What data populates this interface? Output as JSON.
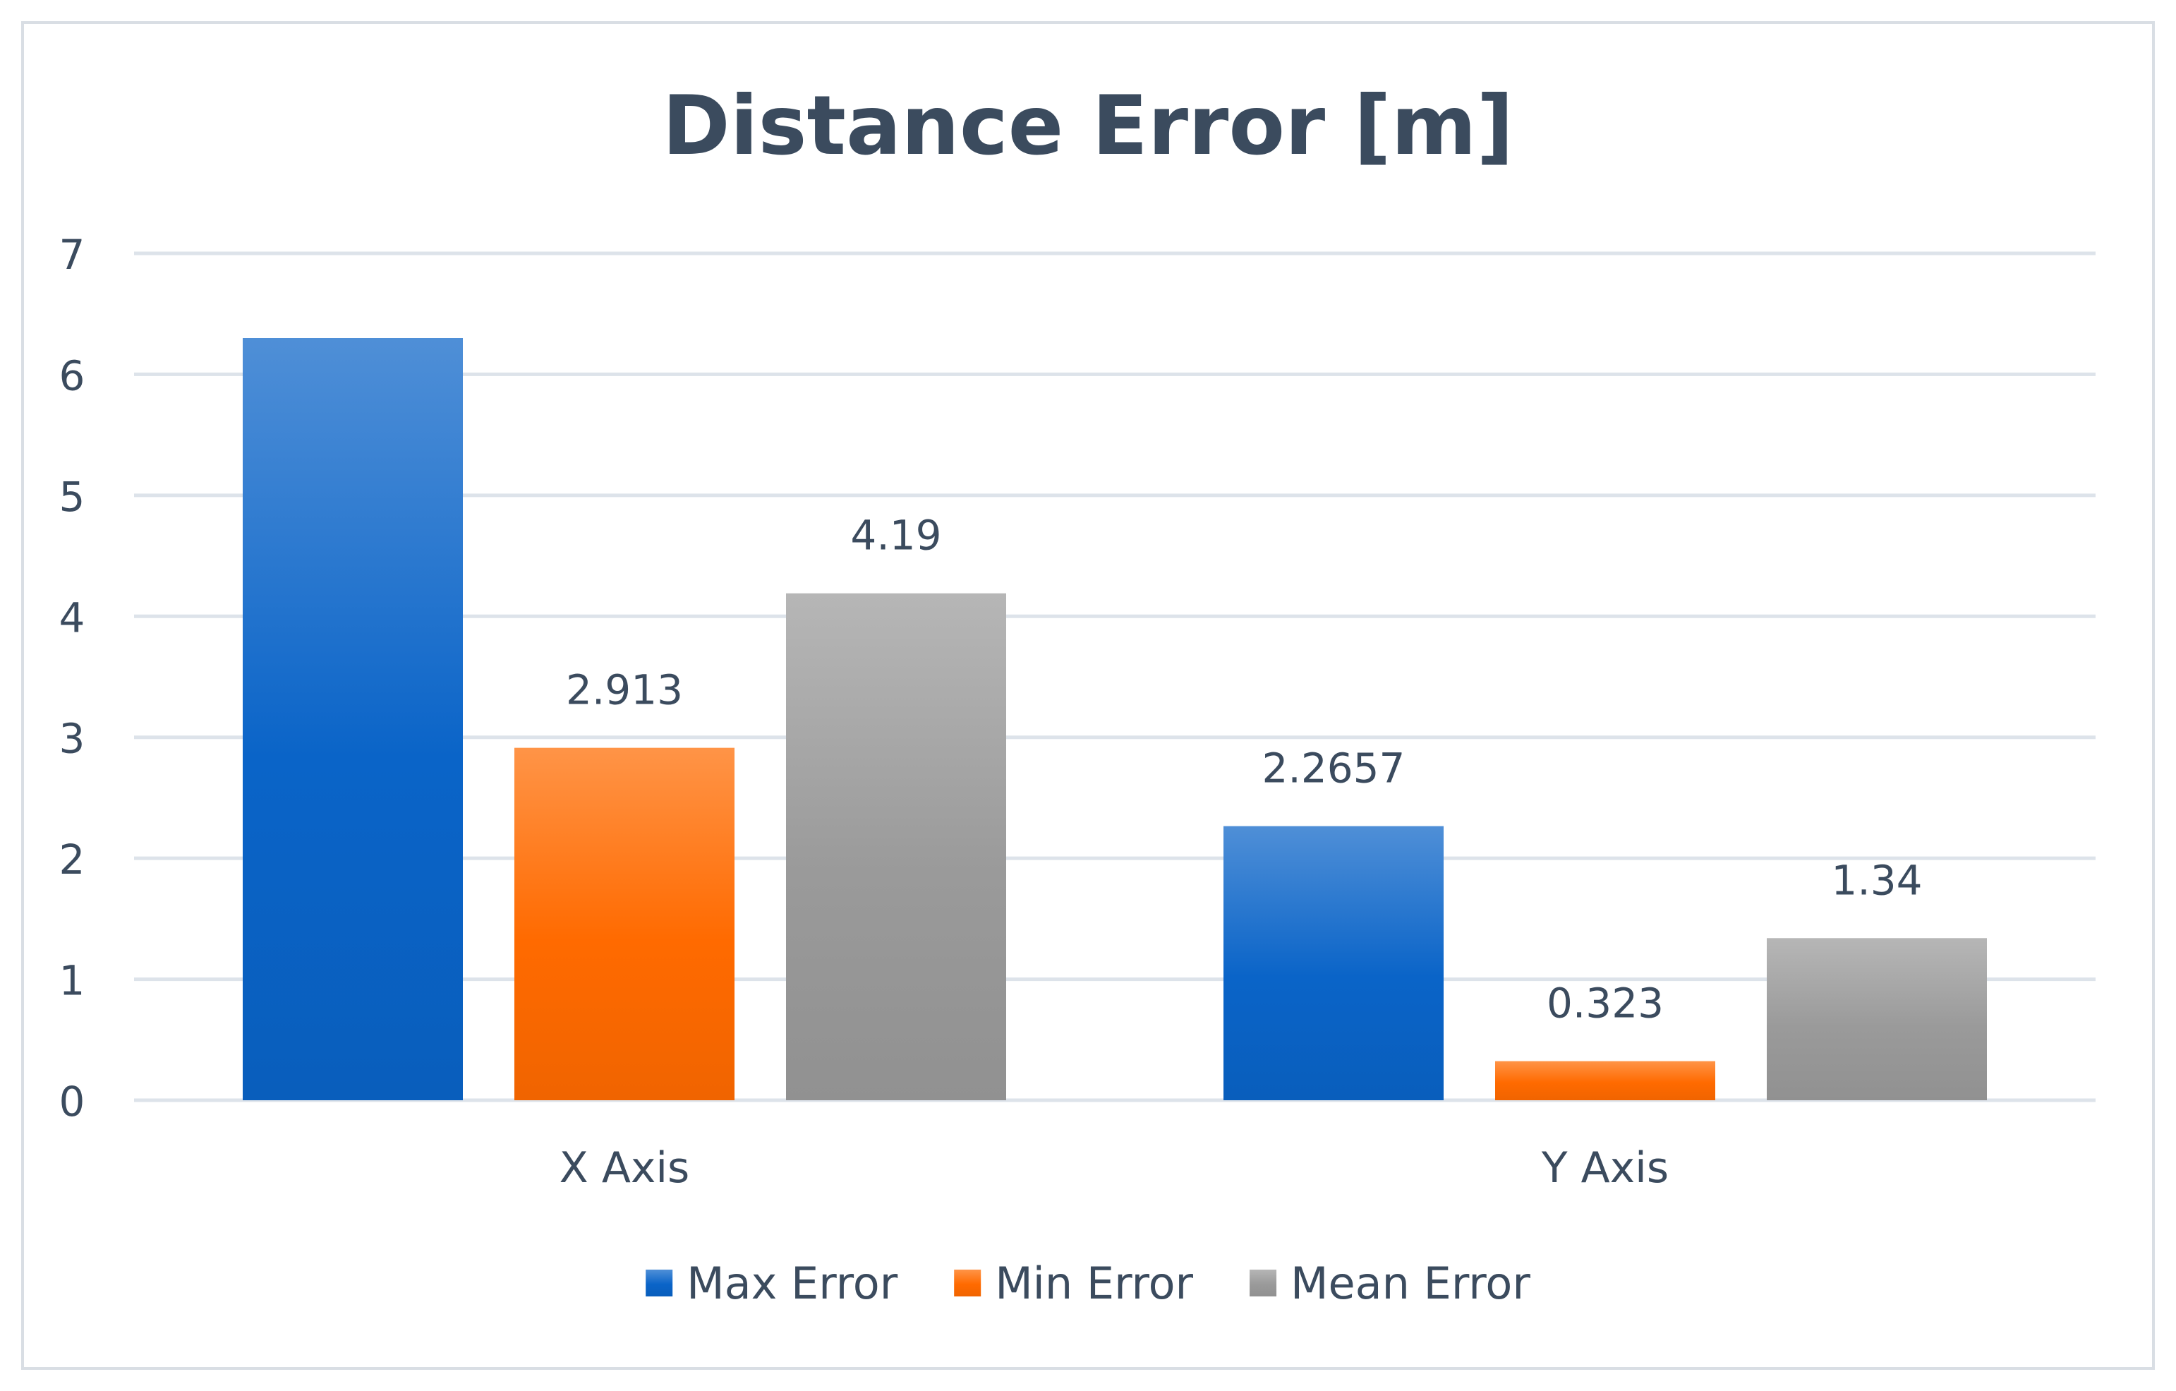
{
  "chart_data": {
    "type": "bar",
    "title": "Distance Error [m]",
    "xlabel": "",
    "ylabel": "",
    "categories": [
      "X Axis",
      "Y Axis"
    ],
    "series": [
      {
        "name": "Max Error",
        "values": [
          6.3,
          2.2657
        ],
        "labels": [
          "",
          "2.2657"
        ],
        "color": "#0a64c8"
      },
      {
        "name": "Min Error",
        "values": [
          2.913,
          0.323
        ],
        "labels": [
          "2.913",
          "0.323"
        ],
        "color": "#ff6a00"
      },
      {
        "name": "Mean Error",
        "values": [
          4.19,
          1.34
        ],
        "labels": [
          "4.19",
          "1.34"
        ],
        "color": "#9a9a9a"
      }
    ],
    "ylim": [
      0,
      7
    ],
    "yticks": [
      0,
      1,
      2,
      3,
      4,
      5,
      6,
      7
    ],
    "grid": true,
    "legend_position": "bottom"
  },
  "colors": {
    "text": "#3b4b5e",
    "grid": "#dde3ea",
    "border": "#d9dee4"
  }
}
